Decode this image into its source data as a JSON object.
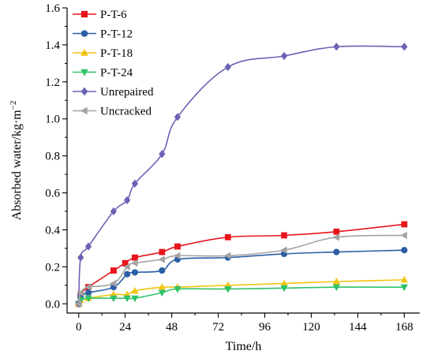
{
  "chart_data": {
    "type": "line",
    "title": "",
    "xlabel": "Time/h",
    "ylabel": "Absorbed water/kg·m",
    "ylabel_superscript": "−2",
    "xlim": [
      -6,
      176
    ],
    "ylim": [
      -0.05,
      1.6
    ],
    "xticks": [
      0,
      24,
      48,
      72,
      96,
      120,
      144,
      168
    ],
    "yticks": [
      0.0,
      0.2,
      0.4,
      0.6,
      0.8,
      1.0,
      1.2,
      1.4,
      1.6
    ],
    "xtick_labels": [
      "0",
      "24",
      "48",
      "72",
      "96",
      "120",
      "144",
      "168"
    ],
    "ytick_labels": [
      "0.0",
      "0.2",
      "0.4",
      "0.6",
      "0.8",
      "1.0",
      "1.2",
      "1.4",
      "1.6"
    ],
    "grid": false,
    "legend_position": "top-left",
    "series": [
      {
        "name": "P-T-6",
        "color": "#e8141c",
        "marker": "square",
        "x": [
          0,
          1,
          5,
          18,
          24,
          29,
          43,
          51,
          77,
          106,
          133,
          168
        ],
        "y": [
          0.0,
          0.05,
          0.09,
          0.18,
          0.22,
          0.25,
          0.28,
          0.31,
          0.36,
          0.37,
          0.39,
          0.43
        ]
      },
      {
        "name": "P-T-12",
        "color": "#2a5fa5",
        "marker": "circle",
        "x": [
          0,
          1,
          5,
          18,
          25,
          29,
          43,
          51,
          77,
          106,
          133,
          168
        ],
        "y": [
          0.0,
          0.04,
          0.06,
          0.09,
          0.16,
          0.17,
          0.18,
          0.24,
          0.25,
          0.27,
          0.28,
          0.29
        ]
      },
      {
        "name": "P-T-18",
        "color": "#f2c40f",
        "marker": "triangle-up",
        "x": [
          0,
          1,
          5,
          18,
          25,
          29,
          43,
          51,
          77,
          106,
          133,
          168
        ],
        "y": [
          0.0,
          0.02,
          0.03,
          0.05,
          0.05,
          0.07,
          0.09,
          0.09,
          0.1,
          0.11,
          0.12,
          0.13
        ]
      },
      {
        "name": "P-T-24",
        "color": "#2ec26a",
        "marker": "triangle-down",
        "x": [
          0,
          1,
          5,
          18,
          25,
          29,
          43,
          51,
          77,
          106,
          133,
          168
        ],
        "y": [
          0.0,
          0.02,
          0.03,
          0.03,
          0.03,
          0.03,
          0.06,
          0.08,
          0.08,
          0.085,
          0.09,
          0.09
        ]
      },
      {
        "name": "Unrepaired",
        "color": "#6b63b5",
        "marker": "diamond",
        "x": [
          0,
          1,
          5,
          18,
          25,
          29,
          43,
          51,
          77,
          106,
          133,
          168
        ],
        "y": [
          0.0,
          0.25,
          0.31,
          0.5,
          0.56,
          0.65,
          0.81,
          1.01,
          1.28,
          1.34,
          1.39,
          1.39
        ]
      },
      {
        "name": "Uncracked",
        "color": "#a3a3a3",
        "marker": "triangle-left",
        "x": [
          0,
          1,
          5,
          18,
          25,
          29,
          43,
          51,
          77,
          106,
          133,
          168
        ],
        "y": [
          0.0,
          0.06,
          0.09,
          0.11,
          0.2,
          0.22,
          0.24,
          0.26,
          0.26,
          0.29,
          0.36,
          0.37
        ]
      }
    ]
  }
}
